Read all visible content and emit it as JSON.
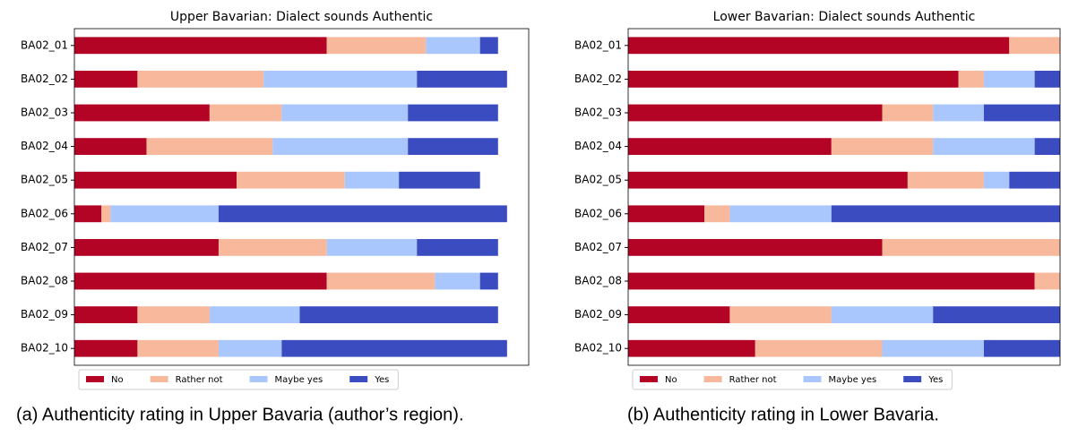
{
  "chart_data": [
    {
      "type": "bar",
      "orientation": "horizontal",
      "stacked": true,
      "title": "Upper Bavarian: Dialect sounds Authentic",
      "caption": "(a) Authenticity rating in Upper Bavaria (author’s region).",
      "categories": [
        "BA02_01",
        "BA02_02",
        "BA02_03",
        "BA02_04",
        "BA02_05",
        "BA02_06",
        "BA02_07",
        "BA02_08",
        "BA02_09",
        "BA02_10"
      ],
      "series": [
        {
          "name": "No",
          "color": "#b40426",
          "values": [
            28,
            7,
            15,
            8,
            18,
            3,
            16,
            28,
            7,
            7
          ]
        },
        {
          "name": "Rather not",
          "color": "#f7b89c",
          "values": [
            11,
            14,
            8,
            14,
            12,
            1,
            12,
            12,
            8,
            9
          ]
        },
        {
          "name": "Maybe yes",
          "color": "#aac7fd",
          "values": [
            6,
            17,
            14,
            15,
            6,
            12,
            10,
            5,
            10,
            7
          ]
        },
        {
          "name": "Yes",
          "color": "#3b4cc0",
          "values": [
            2,
            10,
            10,
            10,
            9,
            32,
            9,
            2,
            22,
            25
          ]
        }
      ],
      "xlim": [
        0,
        50.4
      ],
      "legend": "lower left"
    },
    {
      "type": "bar",
      "orientation": "horizontal",
      "stacked": true,
      "title": "Lower Bavarian: Dialect sounds Authentic",
      "caption": "(b) Authenticity rating in Lower Bavaria.",
      "categories": [
        "BA02_01",
        "BA02_02",
        "BA02_03",
        "BA02_04",
        "BA02_05",
        "BA02_06",
        "BA02_07",
        "BA02_08",
        "BA02_09",
        "BA02_10"
      ],
      "series": [
        {
          "name": "No",
          "color": "#b40426",
          "values": [
            15,
            13,
            10,
            8,
            11,
            3,
            10,
            16,
            4,
            5
          ]
        },
        {
          "name": "Rather not",
          "color": "#f7b89c",
          "values": [
            2,
            1,
            2,
            4,
            3,
            1,
            7,
            1,
            4,
            5
          ]
        },
        {
          "name": "Maybe yes",
          "color": "#aac7fd",
          "values": [
            0,
            2,
            2,
            4,
            1,
            4,
            0,
            0,
            4,
            4
          ]
        },
        {
          "name": "Yes",
          "color": "#3b4cc0",
          "values": [
            0,
            1,
            3,
            1,
            2,
            9,
            0,
            0,
            5,
            3
          ]
        }
      ],
      "xlim": [
        0,
        17
      ],
      "legend": "lower left"
    }
  ]
}
